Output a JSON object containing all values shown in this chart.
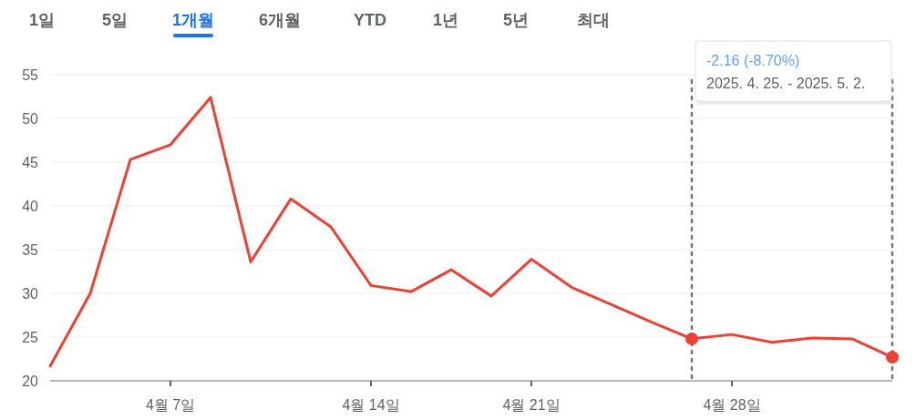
{
  "chart_data": {
    "type": "line",
    "categories": [
      null,
      null,
      null,
      "4월 7일",
      null,
      null,
      null,
      null,
      "4월 14일",
      null,
      null,
      null,
      "4월 21일",
      null,
      null,
      null,
      null,
      "4월 28일",
      null,
      null,
      null,
      null
    ],
    "series": [
      {
        "color": "#ea4335",
        "values": [
          21.7,
          30.0,
          45.3,
          47.0,
          52.4,
          33.6,
          40.8,
          37.6,
          30.9,
          30.2,
          32.7,
          29.7,
          33.9,
          30.7,
          28.7,
          26.7,
          24.8,
          25.3,
          24.4,
          24.9,
          24.8,
          22.7
        ]
      }
    ],
    "ylim": [
      20,
      55
    ],
    "yticks": [
      20,
      25,
      30,
      35,
      40,
      45,
      50,
      55
    ],
    "grid": "y",
    "annotations": [
      "1일",
      "5일",
      "1개월",
      "6개월",
      "YTD",
      "1년",
      "5년",
      "최대",
      "-2.16 (-8.70%)",
      "2025. 4. 25. - 2025. 5. 2."
    ]
  }
}
